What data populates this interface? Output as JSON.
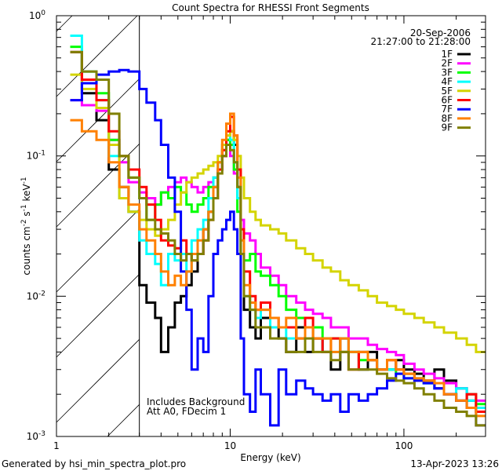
{
  "chart_data": {
    "type": "line",
    "title": "Count Spectra for RHESSI Front Segments",
    "xlabel": "Energy (keV)",
    "ylabel": "counts cm",
    "ylabel_parts": {
      "a": "counts cm",
      "e1": "-2",
      "b": " s",
      "e2": "-1",
      "c": " keV",
      "e3": "-1"
    },
    "xscale": "log",
    "yscale": "log",
    "xlim": [
      1,
      295
    ],
    "ylim": [
      0.001,
      1
    ],
    "xticks": [
      {
        "value": 1,
        "label": "1"
      },
      {
        "value": 10,
        "label": "10"
      },
      {
        "value": 100,
        "label": "100"
      }
    ],
    "yticks": [
      {
        "value": 1,
        "base": "10",
        "exp": "0"
      },
      {
        "value": 0.1,
        "base": "10",
        "exp": "-1"
      },
      {
        "value": 0.01,
        "base": "10",
        "exp": "-2"
      },
      {
        "value": 0.001,
        "base": "10",
        "exp": "-3"
      }
    ],
    "excluded_region_keV": [
      1,
      3
    ],
    "legend": {
      "placement": "top-right",
      "date": "20-Sep-2006",
      "time_range": "21:27:00 to 21:28:00"
    },
    "annotations": [
      "Includes Background",
      "Att A0, FDecim 1"
    ],
    "energy_edges": [
      1.2,
      1.4,
      1.7,
      2.0,
      2.3,
      2.6,
      3.0,
      3.3,
      3.7,
      4.0,
      4.4,
      4.8,
      5.2,
      5.6,
      6.0,
      6.5,
      7.0,
      7.5,
      8.0,
      8.5,
      9.0,
      9.5,
      10.0,
      10.5,
      11.0,
      11.5,
      12,
      13,
      14,
      15,
      17,
      19,
      21,
      24,
      27,
      30,
      34,
      38,
      43,
      48,
      55,
      62,
      70,
      80,
      90,
      100,
      115,
      130,
      150,
      170,
      200,
      230,
      260,
      295
    ],
    "series": [
      {
        "name": "1F",
        "color": "#000000",
        "values": [
          0.55,
          0.28,
          0.18,
          0.08,
          0.06,
          0.04,
          0.012,
          0.009,
          0.007,
          0.004,
          0.006,
          0.009,
          0.01,
          0.012,
          0.015,
          0.02,
          0.03,
          0.04,
          0.06,
          0.08,
          0.1,
          0.13,
          0.15,
          0.12,
          0.06,
          0.02,
          0.008,
          0.006,
          0.005,
          0.007,
          0.006,
          0.005,
          0.004,
          0.006,
          0.004,
          0.005,
          0.004,
          0.003,
          0.005,
          0.004,
          0.003,
          0.004,
          0.003,
          0.003,
          0.0035,
          0.003,
          0.0028,
          0.0025,
          0.003,
          0.0025,
          0.0022,
          0.0018,
          0.0015
        ]
      },
      {
        "name": "2F",
        "color": "#ff00ff",
        "values": [
          0.25,
          0.23,
          0.21,
          0.13,
          0.09,
          0.065,
          0.055,
          0.05,
          0.045,
          0.055,
          0.06,
          0.065,
          0.07,
          0.065,
          0.06,
          0.055,
          0.06,
          0.065,
          0.07,
          0.08,
          0.1,
          0.12,
          0.1,
          0.075,
          0.05,
          0.035,
          0.028,
          0.025,
          0.02,
          0.016,
          0.014,
          0.012,
          0.01,
          0.009,
          0.008,
          0.0075,
          0.007,
          0.006,
          0.006,
          0.005,
          0.005,
          0.0045,
          0.0042,
          0.004,
          0.0038,
          0.0033,
          0.003,
          0.0028,
          0.0026,
          0.0024,
          0.0022,
          0.002,
          0.0018
        ]
      },
      {
        "name": "3F",
        "color": "#00ff00",
        "values": [
          0.6,
          0.4,
          0.28,
          0.13,
          0.1,
          0.07,
          0.05,
          0.035,
          0.045,
          0.055,
          0.05,
          0.06,
          0.055,
          0.045,
          0.04,
          0.045,
          0.05,
          0.06,
          0.07,
          0.09,
          0.11,
          0.13,
          0.12,
          0.08,
          0.04,
          0.02,
          0.018,
          0.02,
          0.015,
          0.014,
          0.012,
          0.01,
          0.008,
          0.007,
          0.006,
          0.006,
          0.005,
          0.005,
          0.004,
          0.004,
          0.0035,
          0.0035,
          0.003,
          0.003,
          0.0028,
          0.0026,
          0.0025,
          0.0024,
          0.0022,
          0.002,
          0.0018,
          0.002,
          0.0017
        ]
      },
      {
        "name": "4F",
        "color": "#00ffff",
        "values": [
          0.72,
          0.4,
          0.25,
          0.1,
          0.05,
          0.04,
          0.025,
          0.02,
          0.017,
          0.012,
          0.02,
          0.018,
          0.02,
          0.015,
          0.025,
          0.03,
          0.035,
          0.05,
          0.07,
          0.09,
          0.12,
          0.14,
          0.13,
          0.09,
          0.05,
          0.02,
          0.01,
          0.008,
          0.007,
          0.008,
          0.006,
          0.006,
          0.005,
          0.005,
          0.006,
          0.005,
          0.004,
          0.004,
          0.005,
          0.004,
          0.004,
          0.0035,
          0.003,
          0.003,
          0.003,
          0.0028,
          0.0026,
          0.0024,
          0.0022,
          0.002,
          0.0022,
          0.0018,
          0.0016
        ]
      },
      {
        "name": "5F",
        "color": "#d4d400",
        "values": [
          0.38,
          0.3,
          0.22,
          0.12,
          0.05,
          0.04,
          0.035,
          0.03,
          0.027,
          0.03,
          0.035,
          0.045,
          0.055,
          0.065,
          0.07,
          0.075,
          0.08,
          0.085,
          0.09,
          0.1,
          0.12,
          0.14,
          0.15,
          0.13,
          0.1,
          0.07,
          0.05,
          0.04,
          0.035,
          0.032,
          0.03,
          0.028,
          0.025,
          0.022,
          0.02,
          0.018,
          0.016,
          0.015,
          0.013,
          0.012,
          0.011,
          0.01,
          0.009,
          0.0085,
          0.008,
          0.0075,
          0.007,
          0.0065,
          0.006,
          0.0055,
          0.005,
          0.0045,
          0.004
        ]
      },
      {
        "name": "6F",
        "color": "#ff0000",
        "values": [
          0.55,
          0.35,
          0.25,
          0.15,
          0.1,
          0.08,
          0.06,
          0.045,
          0.035,
          0.025,
          0.023,
          0.022,
          0.025,
          0.02,
          0.018,
          0.02,
          0.025,
          0.035,
          0.05,
          0.08,
          0.11,
          0.15,
          0.19,
          0.14,
          0.08,
          0.03,
          0.015,
          0.01,
          0.008,
          0.009,
          0.007,
          0.006,
          0.006,
          0.005,
          0.007,
          0.005,
          0.004,
          0.005,
          0.004,
          0.003,
          0.004,
          0.0035,
          0.003,
          0.0035,
          0.003,
          0.0028,
          0.0025,
          0.0025,
          0.0022,
          0.002,
          0.0018,
          0.002,
          0.0015
        ]
      },
      {
        "name": "7F",
        "color": "#0000ff",
        "values": [
          0.25,
          0.33,
          0.38,
          0.4,
          0.41,
          0.4,
          0.3,
          0.24,
          0.18,
          0.12,
          0.07,
          0.04,
          0.015,
          0.008,
          0.003,
          0.005,
          0.004,
          0.01,
          0.02,
          0.025,
          0.03,
          0.035,
          0.04,
          0.03,
          0.02,
          0.005,
          0.002,
          0.0015,
          0.003,
          0.002,
          0.0012,
          0.003,
          0.002,
          0.0025,
          0.0022,
          0.002,
          0.0018,
          0.002,
          0.0015,
          0.002,
          0.0018,
          0.002,
          0.0022,
          0.0025,
          0.0028,
          0.0026,
          0.0025,
          0.0024,
          0.0022,
          0.002,
          0.0018,
          0.0016,
          0.0012
        ]
      },
      {
        "name": "8F",
        "color": "#ff8000",
        "values": [
          0.18,
          0.15,
          0.13,
          0.09,
          0.06,
          0.045,
          0.03,
          0.025,
          0.02,
          0.015,
          0.012,
          0.014,
          0.012,
          0.015,
          0.02,
          0.025,
          0.03,
          0.04,
          0.06,
          0.09,
          0.13,
          0.17,
          0.2,
          0.14,
          0.07,
          0.025,
          0.012,
          0.009,
          0.008,
          0.008,
          0.007,
          0.006,
          0.007,
          0.005,
          0.006,
          0.005,
          0.005,
          0.004,
          0.005,
          0.004,
          0.004,
          0.0035,
          0.003,
          0.0035,
          0.003,
          0.0028,
          0.0026,
          0.0025,
          0.0024,
          0.002,
          0.0018,
          0.0016,
          0.0014
        ]
      },
      {
        "name": "9F",
        "color": "#808000",
        "values": [
          0.55,
          0.4,
          0.35,
          0.2,
          0.1,
          0.07,
          0.05,
          0.035,
          0.03,
          0.028,
          0.025,
          0.02,
          0.018,
          0.02,
          0.018,
          0.02,
          0.025,
          0.035,
          0.05,
          0.075,
          0.1,
          0.12,
          0.11,
          0.09,
          0.06,
          0.02,
          0.01,
          0.008,
          0.006,
          0.006,
          0.005,
          0.005,
          0.004,
          0.004,
          0.005,
          0.004,
          0.004,
          0.0035,
          0.004,
          0.003,
          0.003,
          0.003,
          0.0028,
          0.0026,
          0.0025,
          0.0024,
          0.0022,
          0.002,
          0.0018,
          0.0016,
          0.0015,
          0.0014,
          0.0012
        ]
      }
    ]
  },
  "footer": {
    "generator": "Generated by hsi_min_spectra_plot.pro",
    "timestamp": "13-Apr-2023 13:26"
  }
}
